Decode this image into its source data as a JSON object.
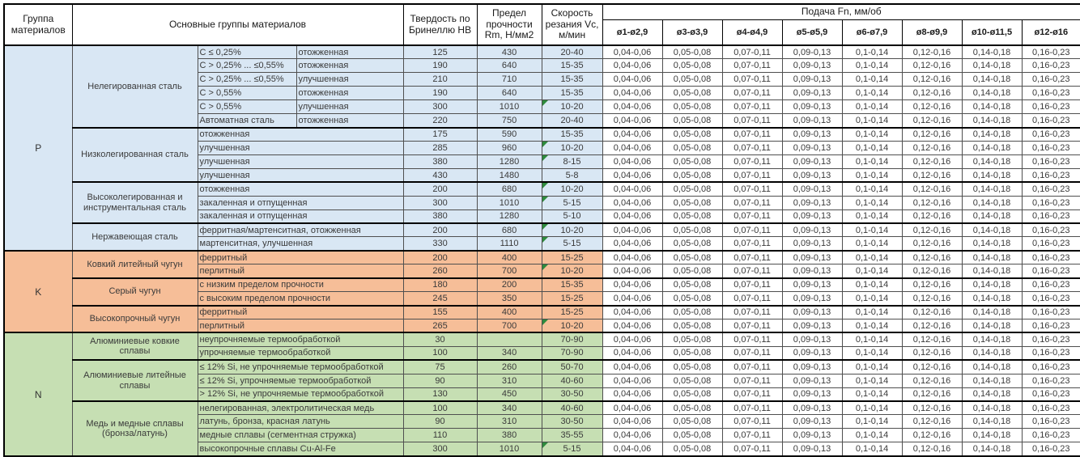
{
  "table": {
    "headers": {
      "group": "Группа материалов",
      "main_groups": "Основные группы материалов",
      "hardness": "Твердость по Бринеллю HB",
      "strength": "Предел прочности Rm, Н/мм2",
      "speed": "Скорость резания Vc, м/мин",
      "feed": "Подача Fn, мм/об",
      "feed_columns": [
        "ø1-ø2,9",
        "ø3-ø3,9",
        "ø4-ø4,9",
        "ø5-ø5,9",
        "ø6-ø7,9",
        "ø8-ø9,9",
        "ø10-ø11,5",
        "ø12-ø16"
      ]
    },
    "feed_values": [
      "0,04-0,06",
      "0,05-0,08",
      "0,07-0,11",
      "0,09-0,13",
      "0,1-0,14",
      "0,12-0,16",
      "0,14-0,18",
      "0,16-0,23"
    ],
    "colors": {
      "p_section": "#D9E7F4",
      "k_section": "#F6BE98",
      "n_section": "#C6DFB3",
      "error_flag": "#2E8B3D"
    },
    "sections": [
      {
        "group": "P",
        "color_key": "p",
        "blocks": [
          {
            "name": "Нелегированная сталь",
            "rows": [
              {
                "d1": "C ≤ 0,25%",
                "d2": "отожженная",
                "hb": "125",
                "rm": "430",
                "vc": "20-40",
                "flag": false
              },
              {
                "d1": "C > 0,25% ... ≤0,55%",
                "d2": "отожженная",
                "hb": "190",
                "rm": "640",
                "vc": "15-35",
                "flag": false
              },
              {
                "d1": "C > 0,25% ... ≤0,55%",
                "d2": "улучшенная",
                "hb": "210",
                "rm": "710",
                "vc": "15-35",
                "flag": false
              },
              {
                "d1": "C > 0,55%",
                "d2": "отожженная",
                "hb": "190",
                "rm": "640",
                "vc": "15-35",
                "flag": false
              },
              {
                "d1": "C > 0,55%",
                "d2": "улучшенная",
                "hb": "300",
                "rm": "1010",
                "vc": "10-20",
                "flag": true
              },
              {
                "d1": "Автоматная сталь",
                "d2": "отожженная",
                "hb": "220",
                "rm": "750",
                "vc": "20-40",
                "flag": false
              }
            ]
          },
          {
            "name": "Низколегированная сталь",
            "rows": [
              {
                "d1": "отожженная",
                "d2": null,
                "hb": "175",
                "rm": "590",
                "vc": "15-35",
                "flag": false
              },
              {
                "d1": "улучшенная",
                "d2": null,
                "hb": "285",
                "rm": "960",
                "vc": "10-20",
                "flag": true
              },
              {
                "d1": "улучшенная",
                "d2": null,
                "hb": "380",
                "rm": "1280",
                "vc": "8-15",
                "flag": true
              },
              {
                "d1": "улучшенная",
                "d2": null,
                "hb": "430",
                "rm": "1480",
                "vc": "5-8",
                "flag": false
              }
            ]
          },
          {
            "name": "Высоколегированная и инструментальная сталь",
            "rows": [
              {
                "d1": "отожженная",
                "d2": null,
                "hb": "200",
                "rm": "680",
                "vc": "10-20",
                "flag": true
              },
              {
                "d1": "закаленная и отпущенная",
                "d2": null,
                "hb": "300",
                "rm": "1010",
                "vc": "5-15",
                "flag": true
              },
              {
                "d1": "закаленная и отпущенная",
                "d2": null,
                "hb": "380",
                "rm": "1280",
                "vc": "5-10",
                "flag": false
              }
            ]
          },
          {
            "name": "Нержавеющая сталь",
            "rows": [
              {
                "d1": "ферритная/мартенситная, отожженная",
                "d2": null,
                "hb": "200",
                "rm": "680",
                "vc": "10-20",
                "flag": true
              },
              {
                "d1": "мартенситная, улучшенная",
                "d2": null,
                "hb": "330",
                "rm": "1110",
                "vc": "5-15",
                "flag": true
              }
            ]
          }
        ]
      },
      {
        "group": "K",
        "color_key": "k",
        "blocks": [
          {
            "name": "Ковкий литейный чугун",
            "rows": [
              {
                "d1": "ферритный",
                "d2": null,
                "hb": "200",
                "rm": "400",
                "vc": "15-25",
                "flag": false
              },
              {
                "d1": "перлитный",
                "d2": null,
                "hb": "260",
                "rm": "700",
                "vc": "10-20",
                "flag": true
              }
            ]
          },
          {
            "name": "Серый чугун",
            "rows": [
              {
                "d1": "с низким пределом прочности",
                "d2": null,
                "hb": "180",
                "rm": "200",
                "vc": "15-35",
                "flag": false
              },
              {
                "d1": "с высоким пределом прочности",
                "d2": null,
                "hb": "245",
                "rm": "350",
                "vc": "15-25",
                "flag": false
              }
            ]
          },
          {
            "name": "Высокопрочный чугун",
            "rows": [
              {
                "d1": "ферритный",
                "d2": null,
                "hb": "155",
                "rm": "400",
                "vc": "15-25",
                "flag": false
              },
              {
                "d1": "перлитный",
                "d2": null,
                "hb": "265",
                "rm": "700",
                "vc": "10-20",
                "flag": true
              }
            ]
          }
        ]
      },
      {
        "group": "N",
        "color_key": "n",
        "blocks": [
          {
            "name": "Алюминиевые ковкие сплавы",
            "rows": [
              {
                "d1": "неупрочняемые термообработкой",
                "d2": null,
                "hb": "30",
                "rm": "",
                "vc": "70-90",
                "flag": false
              },
              {
                "d1": "упрочняемые термообработкой",
                "d2": null,
                "hb": "100",
                "rm": "340",
                "vc": "70-90",
                "flag": false
              }
            ]
          },
          {
            "name": "Алюминиевые литейные сплавы",
            "rows": [
              {
                "d1": "≤ 12% Si, не упрочняемые термообработкой",
                "d2": null,
                "hb": "75",
                "rm": "260",
                "vc": "50-70",
                "flag": false
              },
              {
                "d1": "≤ 12% Si, упрочняемые термообработкой",
                "d2": null,
                "hb": "90",
                "rm": "310",
                "vc": "40-60",
                "flag": false
              },
              {
                "d1": "> 12% Si, не упрочняемые термообработкой",
                "d2": null,
                "hb": "130",
                "rm": "450",
                "vc": "30-50",
                "flag": false
              }
            ]
          },
          {
            "name": "Медь и медные сплавы (бронза/латунь)",
            "rows": [
              {
                "d1": "нелегированная, электролитическая медь",
                "d2": null,
                "hb": "100",
                "rm": "340",
                "vc": "40-60",
                "flag": false
              },
              {
                "d1": "латунь, бронза, красная латунь",
                "d2": null,
                "hb": "90",
                "rm": "310",
                "vc": "30-50",
                "flag": false
              },
              {
                "d1": "медные сплавы (сегментная стружка)",
                "d2": null,
                "hb": "110",
                "rm": "380",
                "vc": "35-55",
                "flag": false
              },
              {
                "d1": "высокопрочные сплавы Cu-Al-Fe",
                "d2": null,
                "hb": "300",
                "rm": "1010",
                "vc": "5-15",
                "flag": true
              }
            ]
          }
        ]
      }
    ]
  }
}
